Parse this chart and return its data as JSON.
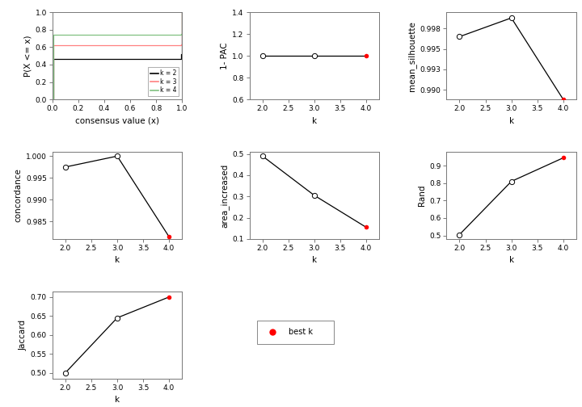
{
  "ecdf": {
    "x_k2": [
      0.0,
      0.005,
      0.005,
      0.495,
      0.495,
      0.505,
      0.505,
      0.995,
      0.995,
      1.0,
      1.0
    ],
    "y_k2": [
      0.0,
      0.0,
      0.46,
      0.46,
      0.46,
      0.46,
      0.46,
      0.46,
      0.52,
      0.52,
      1.0
    ],
    "x_k3": [
      0.0,
      0.005,
      0.005,
      0.995,
      0.995,
      1.0,
      1.0
    ],
    "y_k3": [
      0.0,
      0.0,
      0.62,
      0.62,
      0.63,
      0.63,
      1.0
    ],
    "x_k4": [
      0.0,
      0.005,
      0.005,
      0.995,
      0.995,
      1.0,
      1.0
    ],
    "y_k4": [
      0.0,
      0.0,
      0.74,
      0.74,
      0.755,
      0.755,
      1.0
    ],
    "colors": [
      "#000000",
      "#FF8080",
      "#80C080"
    ],
    "labels": [
      "k = 2",
      "k = 3",
      "k = 4"
    ],
    "xlabel": "consensus value (x)",
    "ylabel": "P(X <= x)",
    "xlim": [
      0.0,
      1.0
    ],
    "ylim": [
      0.0,
      1.0
    ]
  },
  "pac": {
    "k": [
      2,
      3,
      4
    ],
    "values": [
      1.0,
      1.0,
      1.0
    ],
    "best_k_idx": 2,
    "xlabel": "k",
    "ylabel": "1- PAC",
    "ylim": [
      0.6,
      1.4
    ],
    "yticks": [
      0.6,
      0.8,
      1.0,
      1.2,
      1.4
    ]
  },
  "silhouette": {
    "k": [
      2,
      3,
      4
    ],
    "values": [
      0.9965,
      0.9988,
      0.9888
    ],
    "best_k_idx": 2,
    "xlabel": "k",
    "ylabel": "mean_silhouette",
    "ylim": [
      0.9888,
      0.9995
    ]
  },
  "concordance": {
    "k": [
      2,
      3,
      4
    ],
    "values": [
      0.9975,
      1.0,
      0.9815
    ],
    "best_k_idx": 2,
    "xlabel": "k",
    "ylabel": "concordance",
    "ylim": [
      0.981,
      1.001
    ]
  },
  "area_increased": {
    "k": [
      2,
      3,
      4
    ],
    "values": [
      0.49,
      0.305,
      0.155
    ],
    "best_k_idx": 2,
    "xlabel": "k",
    "ylabel": "area_increased",
    "ylim": [
      0.1,
      0.51
    ]
  },
  "rand": {
    "k": [
      2,
      3,
      4
    ],
    "values": [
      0.505,
      0.81,
      0.945
    ],
    "best_k_idx": 2,
    "xlabel": "k",
    "ylabel": "Rand",
    "ylim": [
      0.48,
      0.98
    ]
  },
  "jaccard": {
    "k": [
      2,
      3,
      4
    ],
    "values": [
      0.5,
      0.645,
      0.7
    ],
    "best_k_idx": 2,
    "xlabel": "k",
    "ylabel": "Jaccard",
    "ylim": [
      0.485,
      0.715
    ]
  },
  "best_k_color": "#FF0000",
  "open_circle_color": "#FFFFFF",
  "line_color": "#000000",
  "bg_color": "#FFFFFF",
  "tick_label_size": 6.5,
  "axis_label_size": 7.5
}
